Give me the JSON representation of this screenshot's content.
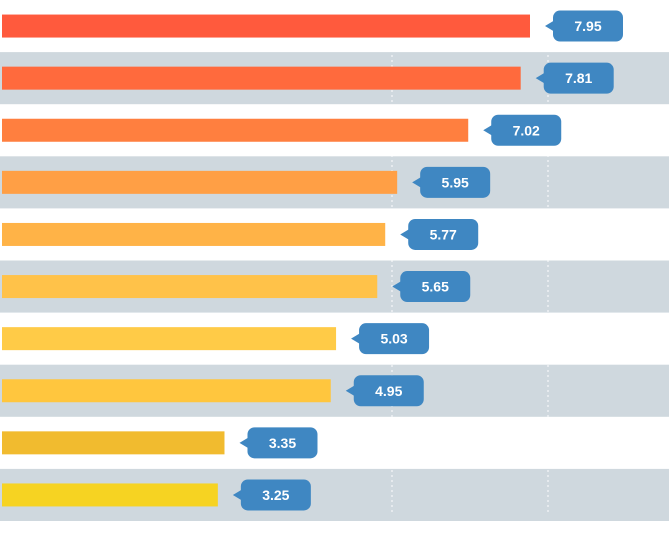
{
  "chart_data": {
    "type": "bar",
    "orientation": "horizontal",
    "title": "",
    "xlabel": "",
    "ylabel": "",
    "categories": [
      "",
      "",
      "",
      "",
      "",
      "",
      "",
      "",
      "",
      ""
    ],
    "values": [
      7.95,
      7.81,
      7.02,
      5.95,
      5.77,
      5.65,
      5.03,
      4.95,
      3.35,
      3.25
    ],
    "data_labels": [
      "7.95",
      "7.81",
      "7.02",
      "5.95",
      "5.77",
      "5.65",
      "5.03",
      "4.95",
      "3.35",
      "3.25"
    ],
    "bar_colors": [
      "#ff5a3d",
      "#ff6a3d",
      "#ff7f3f",
      "#ff9f45",
      "#ffb347",
      "#ffc249",
      "#ffcb47",
      "#ffc63e",
      "#f1bb2f",
      "#f6d322"
    ],
    "label_style": "callout",
    "label_color": "#3f87c2",
    "label_text_color": "#ffffff",
    "stripe_color": "#cfd8de",
    "background_color": "#ffffff",
    "grid": true,
    "legend": "none"
  }
}
